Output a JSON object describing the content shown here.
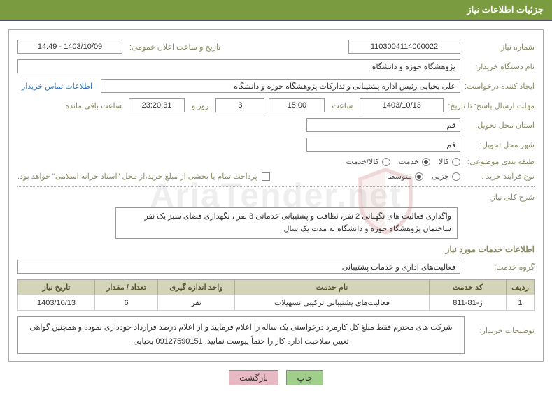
{
  "header": {
    "title": "جزئیات اطلاعات نیاز"
  },
  "fields": {
    "need_number_label": "شماره نیاز:",
    "need_number": "1103004114000022",
    "announce_label": "تاریخ و ساعت اعلان عمومی:",
    "announce_value": "1403/10/09 - 14:49",
    "buyer_org_label": "نام دستگاه خریدار:",
    "buyer_org": "پژوهشگاه حوزه و دانشگاه",
    "requester_label": "ایجاد کننده درخواست:",
    "requester": "علی یحیایی رئیس اداره پشتیبانی و تدارکات پژوهشگاه حوزه و دانشگاه",
    "contact_link": "اطلاعات تماس خریدار",
    "deadline_send_label": "مهلت ارسال پاسخ: تا تاریخ:",
    "deadline_date": "1403/10/13",
    "time_label": "ساعت",
    "deadline_time": "15:00",
    "days_count": "3",
    "days_and": "روز و",
    "countdown": "23:20:31",
    "remaining_label": "ساعت باقی مانده",
    "delivery_province_label": "استان محل تحویل:",
    "delivery_province": "قم",
    "delivery_city_label": "شهر محل تحویل:",
    "delivery_city": "قم",
    "category_label": "طبقه بندی موضوعی:",
    "cat_goods": "کالا",
    "cat_service": "خدمت",
    "cat_both": "کالا/خدمت",
    "process_label": "نوع فرآیند خرید :",
    "proc_partial": "جزیی",
    "proc_medium": "متوسط",
    "payment_note": "پرداخت تمام یا بخشی از مبلغ خرید،از محل \"اسناد خزانه اسلامی\" خواهد بود.",
    "need_desc_label": "شرح کلی نیاز:",
    "need_desc": "واگذاری فعالیت های نگهبانی 2 نفر،  نظافت و پشتیبانی خدماتی 3 نفر ،  نگهداری فضای سبز یک نفر ساختمان پژوهشگاه حوزه و دانشگاه به مدت یک سال",
    "services_header": "اطلاعات خدمات مورد نیاز",
    "service_group_label": "گروه خدمت:",
    "service_group": "فعالیت‌های اداری و خدمات پشتیبانی",
    "buyer_notes_label": "توضیحات خریدار:",
    "buyer_notes": "شرکت های محترم فقط مبلغ کل کارمزد درخواستی یک ساله را اعلام فرمایید و از اعلام درصد قرارداد خودداری نموده و همچنین گواهی تعیین صلاحیت اداره کار را حتماً پیوست نمایید. 09127590151 یحیایی"
  },
  "table": {
    "columns": [
      "ردیف",
      "کد خدمت",
      "نام خدمت",
      "واحد اندازه گیری",
      "تعداد / مقدار",
      "تاریخ نیاز"
    ],
    "col_widths": [
      "40px",
      "110px",
      "auto",
      "110px",
      "90px",
      "110px"
    ],
    "rows": [
      [
        "1",
        "ژ-81-811",
        "فعالیت‌های پشتیبانی ترکیبی تسهیلات",
        "نفر",
        "6",
        "1403/10/13"
      ]
    ]
  },
  "buttons": {
    "print": "چاپ",
    "back": "بازگشت"
  },
  "watermark": "AriaTender.net",
  "colors": {
    "header_bg": "#7a9b40",
    "th_bg": "#d4d4b8",
    "label": "#8a8a66",
    "link": "#3b7dc0",
    "btn_green": "#9fcf8a",
    "btn_pink": "#e8b9c4"
  }
}
